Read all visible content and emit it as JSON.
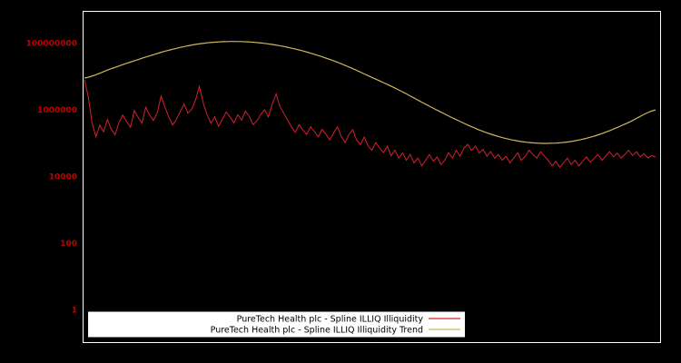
{
  "colors": {
    "background": "#000000",
    "frame": "#ffffff",
    "tick_label": "#c00000",
    "series1": "#d8202c",
    "series2": "#ccb85c",
    "legend_background": "#ffffff",
    "legend_text": "#000000"
  },
  "chart_data": {
    "type": "line",
    "title": "",
    "xlabel": "",
    "ylabel": "",
    "y_scale": "log",
    "grid": false,
    "legend_position": "bottom-center",
    "ylim": [
      0.1,
      900000000
    ],
    "yticks": {
      "values": [
        1,
        100,
        10000,
        1000000,
        100000000
      ],
      "labels": [
        "1",
        "100",
        "10000",
        "1000000",
        "100000000"
      ]
    },
    "series": [
      {
        "name": "PureTech Health plc - Spline ILLIQ Illiquidity",
        "style": "jagged",
        "values": [
          8000000,
          2500000,
          400000,
          160000,
          350000,
          220000,
          520000,
          260000,
          180000,
          420000,
          700000,
          450000,
          300000,
          950000,
          600000,
          400000,
          1200000,
          700000,
          480000,
          820000,
          2600000,
          1200000,
          620000,
          350000,
          520000,
          900000,
          1500000,
          800000,
          1050000,
          2000000,
          5000000,
          1600000,
          720000,
          400000,
          620000,
          320000,
          540000,
          860000,
          610000,
          410000,
          720000,
          500000,
          920000,
          640000,
          360000,
          470000,
          730000,
          1000000,
          620000,
          1500000,
          3000000,
          1250000,
          800000,
          500000,
          310000,
          210000,
          360000,
          250000,
          185000,
          310000,
          225000,
          155000,
          260000,
          185000,
          125000,
          205000,
          310000,
          160000,
          105000,
          185000,
          255000,
          125000,
          92000,
          155000,
          82000,
          62000,
          105000,
          72000,
          52000,
          82000,
          42000,
          62000,
          36000,
          52000,
          31000,
          46000,
          26000,
          36000,
          21000,
          31000,
          46000,
          29000,
          39000,
          23000,
          31000,
          52000,
          36000,
          62000,
          41000,
          72000,
          92000,
          61000,
          82000,
          51000,
          66000,
          41000,
          56000,
          36000,
          46000,
          31000,
          41000,
          26000,
          36000,
          52000,
          31000,
          41000,
          62000,
          46000,
          36000,
          56000,
          41000,
          31000,
          21000,
          29000,
          19000,
          26000,
          36000,
          23000,
          31000,
          21000,
          29000,
          39000,
          27000,
          36000,
          46000,
          31000,
          41000,
          56000,
          39000,
          51000,
          36000,
          46000,
          62000,
          43000,
          56000,
          39000,
          49000,
          36000,
          43000,
          39000
        ]
      },
      {
        "name": "PureTech Health plc - Spline ILLIQ Illiquidity Trend",
        "style": "smooth",
        "values": [
          9000000,
          18000000,
          35000000,
          63000000,
          95000000,
          112000000,
          105000000,
          79000000,
          48000000,
          24000000,
          10000000,
          4000000,
          1400000,
          520000,
          220000,
          125000,
          100000,
          112000,
          180000,
          400000,
          1000000
        ]
      }
    ]
  }
}
